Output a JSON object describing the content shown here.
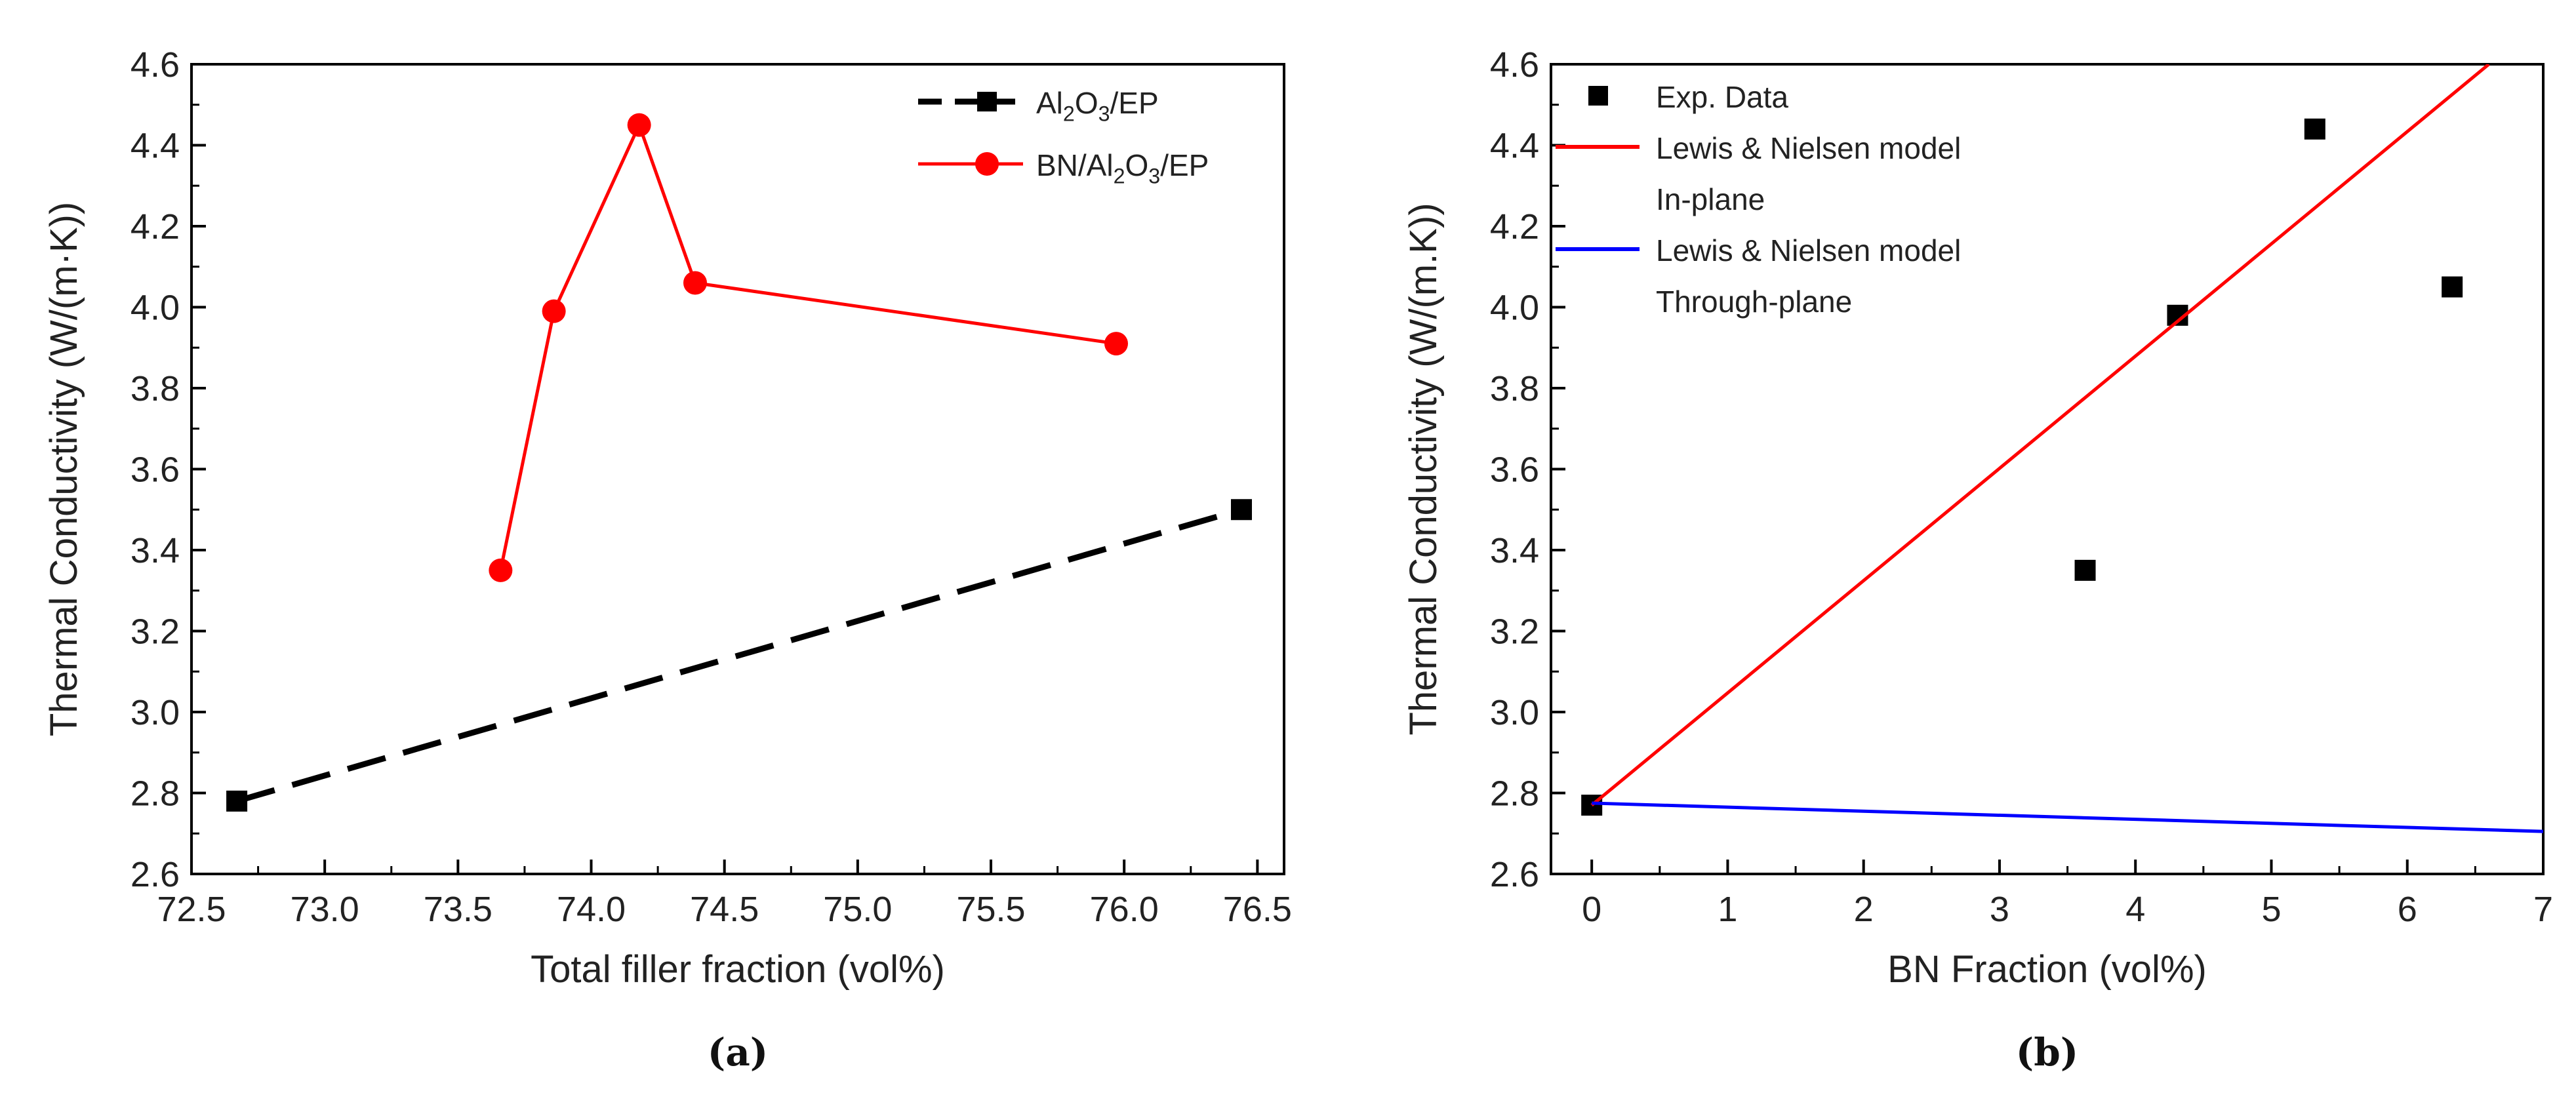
{
  "chart_data": [
    {
      "panel_label": "(a)",
      "type": "line",
      "title": "",
      "xlabel": "Total filler fraction (vol%)",
      "ylabel": "Thermal Conductivity (W/(m·K))",
      "xlim": [
        72.5,
        76.6
      ],
      "ylim": [
        2.6,
        4.6
      ],
      "xticks": [
        72.5,
        73.0,
        73.5,
        74.0,
        74.5,
        75.0,
        75.5,
        76.0,
        76.5
      ],
      "yticks": [
        2.6,
        2.8,
        3.0,
        3.2,
        3.4,
        3.6,
        3.8,
        4.0,
        4.2,
        4.4,
        4.6
      ],
      "tick_decimals": {
        "x": 1,
        "y": 1
      },
      "legend_position": "top-right",
      "series": [
        {
          "name": "Al2O3/EP",
          "legend_label": {
            "parts": [
              "Al",
              "2",
              "O",
              "3",
              "/EP"
            ]
          },
          "color": "#000000",
          "line_style": "dashed",
          "marker": "square",
          "x": [
            72.67,
            76.44
          ],
          "y": [
            2.78,
            3.5
          ]
        },
        {
          "name": "BN/Al2O3/EP",
          "legend_label": {
            "parts": [
              "BN/Al",
              "2",
              "O",
              "3",
              "/EP"
            ]
          },
          "color": "#ff0000",
          "line_style": "solid",
          "marker": "circle",
          "x": [
            73.66,
            73.86,
            74.18,
            74.39,
            75.97
          ],
          "y": [
            3.35,
            3.99,
            4.45,
            4.06,
            3.91
          ]
        }
      ]
    },
    {
      "panel_label": "(b)",
      "type": "scatter",
      "title": "",
      "xlabel": "BN Fraction (vol%)",
      "ylabel": "Thermal Conductivity (W/(m.K))",
      "xlim": [
        -0.3,
        7
      ],
      "ylim": [
        2.6,
        4.6
      ],
      "xticks": [
        0,
        1,
        2,
        3,
        4,
        5,
        6,
        7
      ],
      "yticks": [
        2.6,
        2.8,
        3.0,
        3.2,
        3.4,
        3.6,
        3.8,
        4.0,
        4.2,
        4.4,
        4.6
      ],
      "tick_decimals": {
        "x": 0,
        "y": 1
      },
      "legend_position": "top-left",
      "series": [
        {
          "name": "Exp. Data",
          "legend_lines": [
            "Exp. Data"
          ],
          "color": "#000000",
          "line_style": "none",
          "marker": "square",
          "x": [
            0,
            3.63,
            4.31,
            5.32,
            6.33
          ],
          "y": [
            2.77,
            3.35,
            3.98,
            4.44,
            4.05
          ]
        },
        {
          "name": "Lewis & Nielsen model In-plane",
          "legend_lines": [
            "Lewis & Nielsen model",
            "In-plane"
          ],
          "color": "#ff0000",
          "line_style": "solid",
          "marker": "none",
          "x": [
            0,
            6.6
          ],
          "y": [
            2.77,
            4.6
          ]
        },
        {
          "name": "Lewis & Nielsen model Through-plane",
          "legend_lines": [
            "Lewis & Nielsen model",
            "Through-plane"
          ],
          "color": "#0000ff",
          "line_style": "solid",
          "marker": "none",
          "x": [
            0,
            7
          ],
          "y": [
            2.775,
            2.705
          ]
        }
      ]
    }
  ]
}
